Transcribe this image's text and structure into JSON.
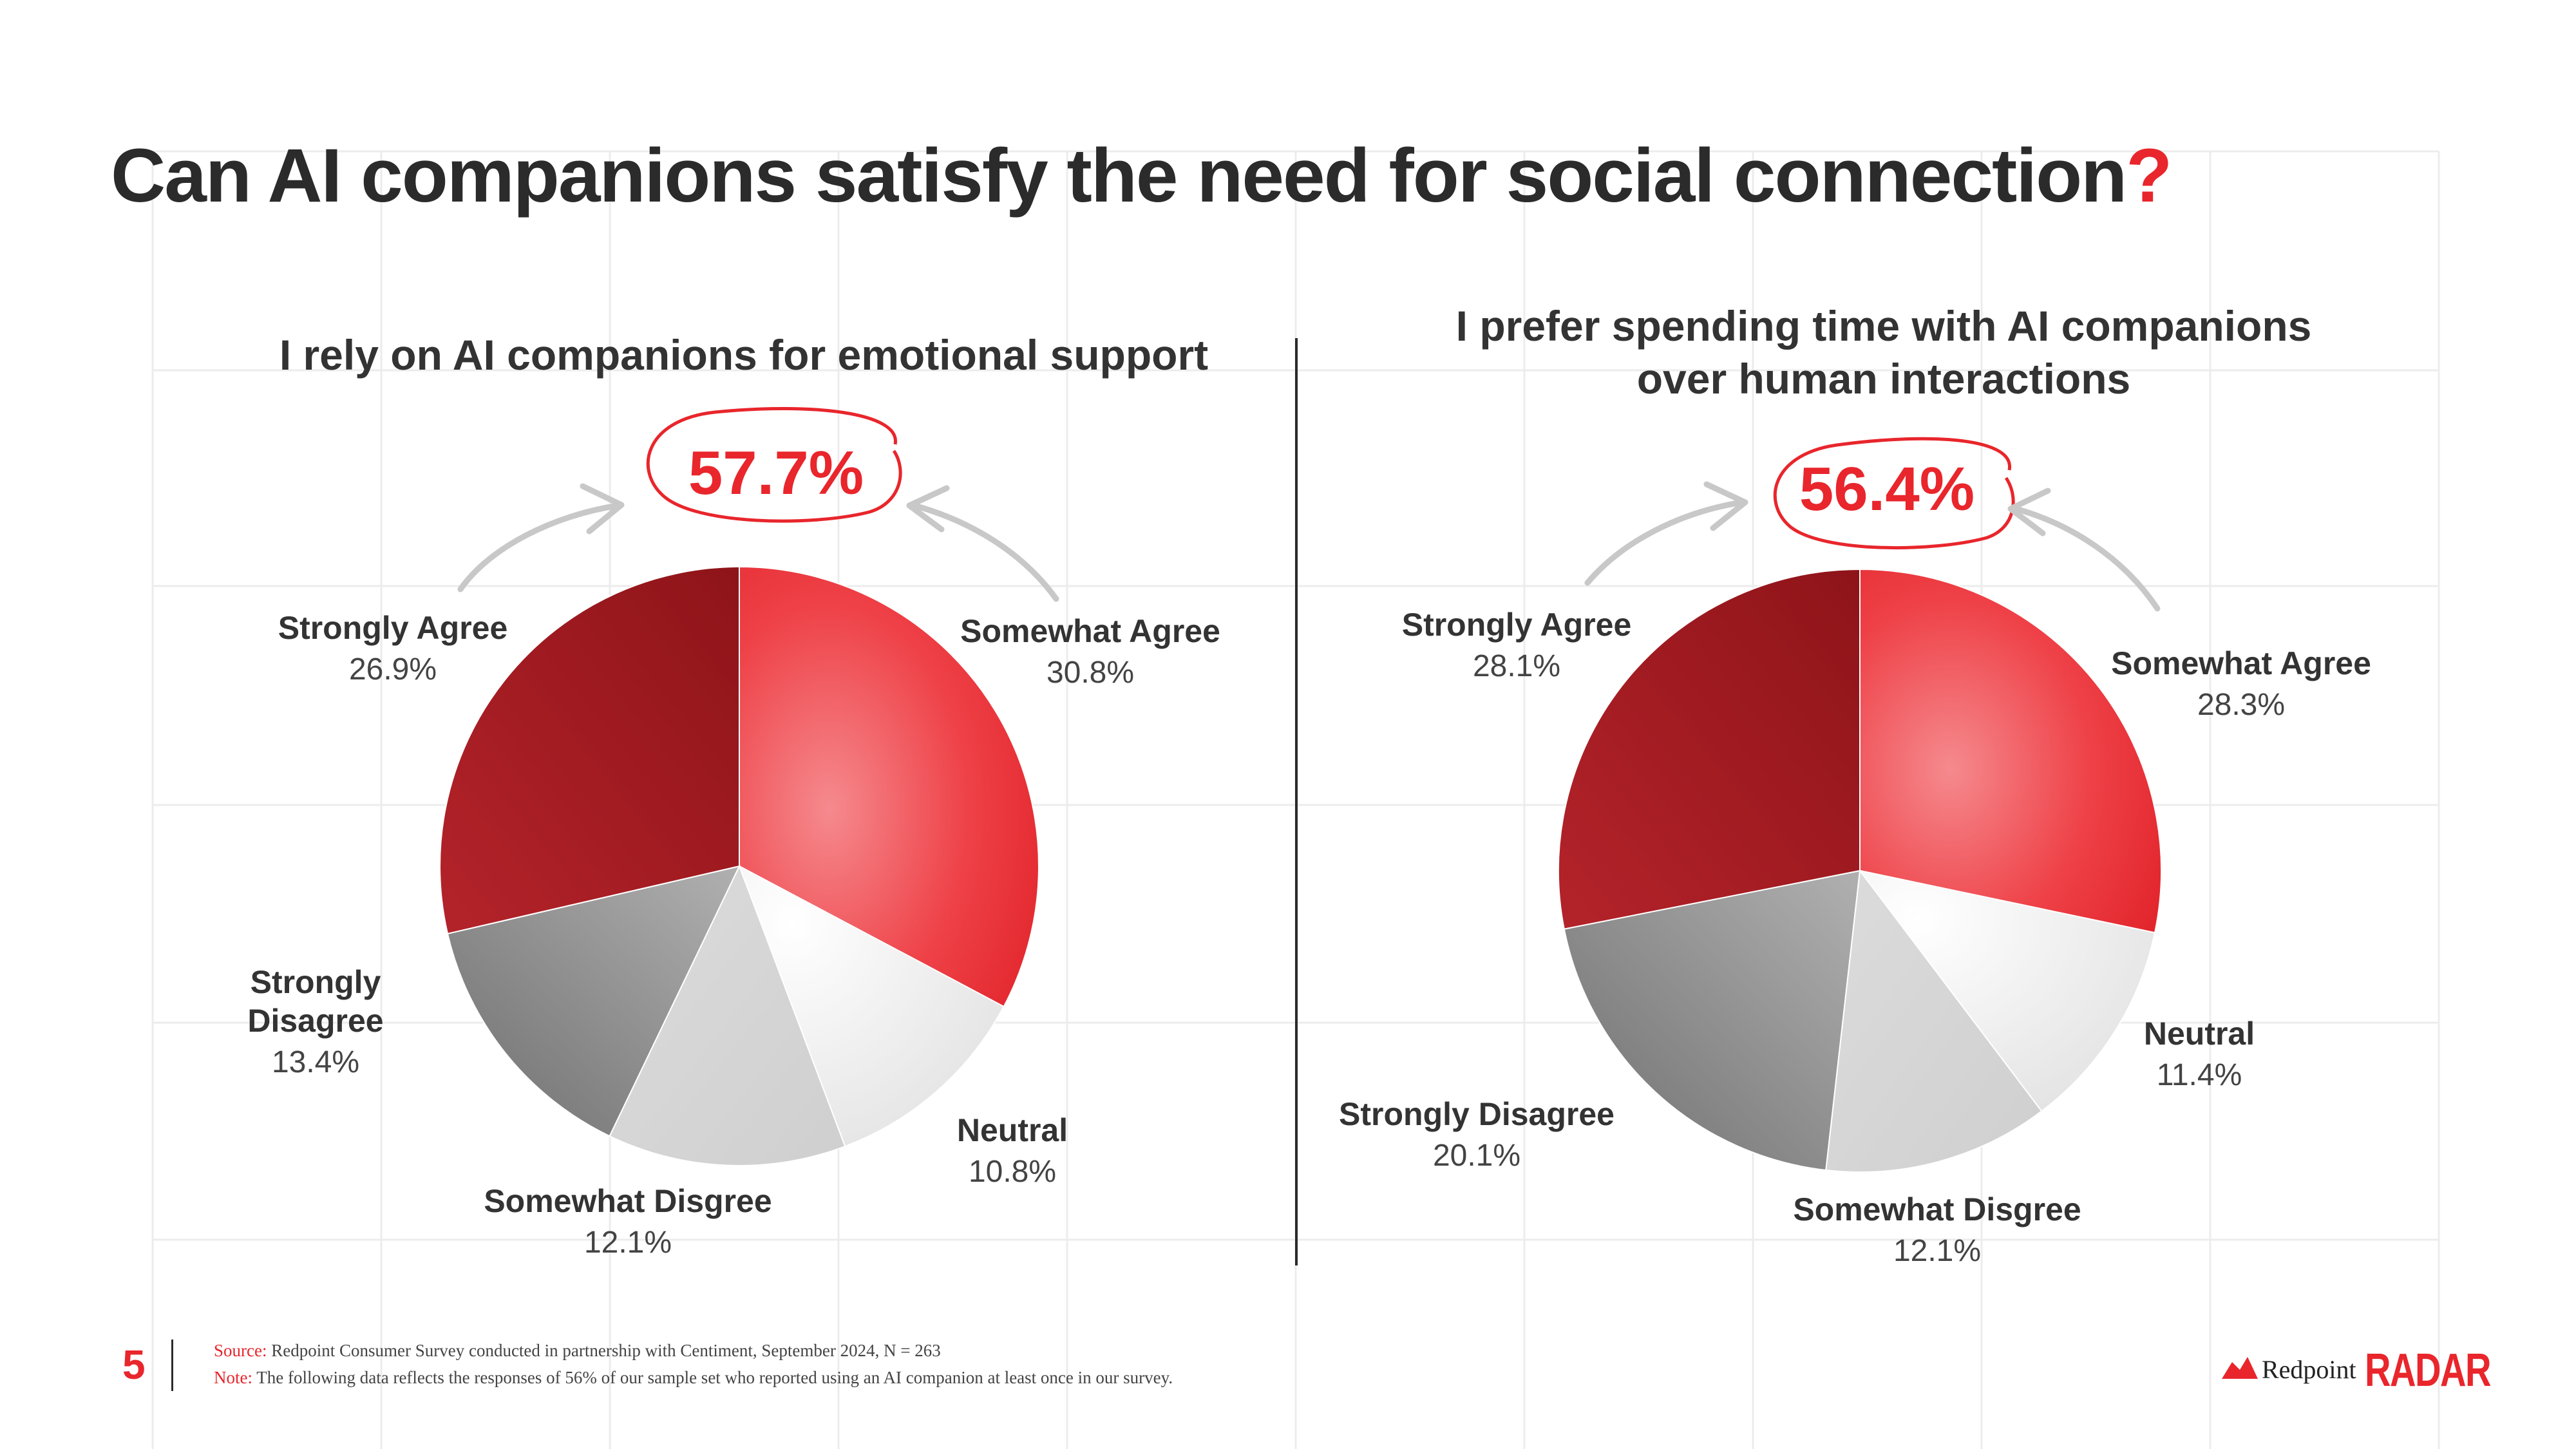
{
  "title": {
    "text": "Can AI companions satisfy the need for social connection",
    "accent": "?"
  },
  "chart_data": [
    {
      "type": "pie",
      "title": "I rely on AI companions for emotional support",
      "callout": "57.7%",
      "slices": [
        {
          "label": "Somewhat Agree",
          "value": 30.8,
          "value_label": "30.8%"
        },
        {
          "label": "Neutral",
          "value": 10.8,
          "value_label": "10.8%"
        },
        {
          "label": "Somewhat Disgree",
          "value": 12.1,
          "value_label": "12.1%"
        },
        {
          "label": "Strongly Disagree",
          "value": 13.4,
          "value_label": "13.4%"
        },
        {
          "label": "Strongly Agree",
          "value": 26.9,
          "value_label": "26.9%"
        }
      ]
    },
    {
      "type": "pie",
      "title_lines": [
        "I prefer spending time with AI companions",
        "over human interactions"
      ],
      "callout": "56.4%",
      "slices": [
        {
          "label": "Somewhat Agree",
          "value": 28.3,
          "value_label": "28.3%"
        },
        {
          "label": "Neutral",
          "value": 11.4,
          "value_label": "11.4%"
        },
        {
          "label": "Somewhat Disgree",
          "value": 12.1,
          "value_label": "12.1%"
        },
        {
          "label": "Strongly Disagree",
          "value": 20.1,
          "value_label": "20.1%"
        },
        {
          "label": "Strongly Agree",
          "value": 28.1,
          "value_label": "28.1%"
        }
      ]
    }
  ],
  "colors": {
    "accent": "#e8262c",
    "slices": [
      "#e8262c",
      "#f2f2f2",
      "#d6d6d6",
      "#8f8f8f",
      "#a11c22"
    ]
  },
  "footer": {
    "page_number": "5",
    "source_label": "Source:",
    "source_text": "Redpoint Consumer Survey conducted in partnership with Centiment, September 2024, N = 263",
    "note_label": "Note:",
    "note_text": "The following data reflects the responses of 56% of our sample set who reported using an AI companion at least once in our survey.",
    "brand_name": "Redpoint",
    "brand_product": "RADAR"
  }
}
